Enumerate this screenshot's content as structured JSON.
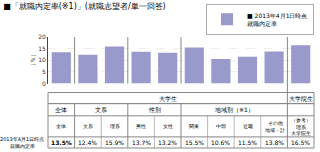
{
  "chart_data": {
    "type": "bar",
    "title": "■「就職内定率(※1)」(就職志望者/単一回答)",
    "ylabel": "（％）",
    "categories": [
      "全体",
      "文系",
      "理系",
      "男性",
      "女性",
      "関東",
      "中部",
      "近畿",
      "その他\n地域・計",
      "（参考）\n理系\n大学院生"
    ],
    "series": [
      {
        "name": "■ 2013年4月1日時点\n就職内定率",
        "color": "#9999cc",
        "values": [
          13.5,
          12.4,
          15.9,
          13.7,
          13.2,
          15.5,
          10.6,
          11.5,
          13.8,
          16.5
        ],
        "value_labels": [
          "13.5%",
          "12.4%",
          "15.9%",
          "13.7%",
          "13.2%",
          "15.5%",
          "10.6%",
          "11.5%",
          "13.8%",
          "16.5%"
        ]
      }
    ],
    "ylim": [
      0,
      20
    ],
    "yticks": [
      0,
      5,
      10,
      15,
      20
    ],
    "grid": true,
    "tick_labels": "y",
    "legend": "upper right",
    "row_label": "2013年4月1日時点\n就職内定率",
    "groups": [
      {
        "label": "大学生",
        "span": 9
      },
      {
        "label": "大学院生",
        "span": 1
      }
    ],
    "subgroups": [
      {
        "label": "全体",
        "span": 1
      },
      {
        "label": "文系",
        "span": 2
      },
      {
        "label": "性別",
        "span": 2
      },
      {
        "label": "地域別（※1）",
        "span": 4
      }
    ]
  }
}
